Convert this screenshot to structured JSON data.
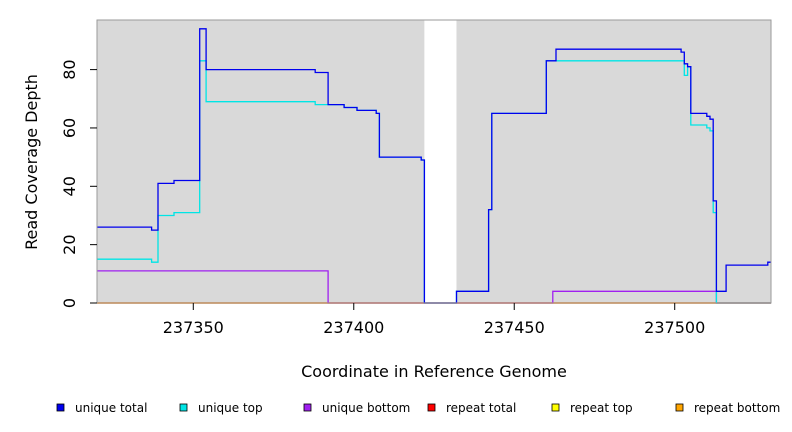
{
  "chart_data": {
    "type": "line",
    "xlabel": "Coordinate in Reference Genome",
    "ylabel": "Read Coverage Depth",
    "xlim": [
      237320,
      237530
    ],
    "ylim": [
      0,
      97
    ],
    "x_ticks": [
      237350,
      237400,
      237450,
      237500
    ],
    "x_tick_labels": [
      "237350",
      "237400",
      "237450",
      "237500"
    ],
    "y_ticks": [
      0,
      20,
      40,
      60,
      80
    ],
    "y_tick_labels": [
      "0",
      "20",
      "40",
      "60",
      "80"
    ],
    "grid": false,
    "background": "#d9d9d9",
    "gap_region": [
      237422,
      237432
    ],
    "legend_position": "bottom",
    "series": [
      {
        "name": "unique total",
        "color": "#0000ee",
        "x": [
          237320,
          237337,
          237339,
          237344,
          237352,
          237354,
          237388,
          237392,
          237397,
          237401,
          237407,
          237408,
          237409,
          237421,
          237422,
          237432,
          237442,
          237443,
          237460,
          237463,
          237502,
          237503,
          237504,
          237505,
          237510,
          237511,
          237512,
          237513,
          237516,
          237529,
          237530
        ],
        "y": [
          26,
          25,
          41,
          42,
          94,
          80,
          79,
          68,
          67,
          66,
          65,
          50,
          50,
          49,
          0,
          4,
          32,
          65,
          83,
          87,
          86,
          82,
          81,
          65,
          64,
          63,
          35,
          4,
          13,
          14,
          14
        ]
      },
      {
        "name": "unique top",
        "color": "#00e5e5",
        "x": [
          237320,
          237334,
          237337,
          237339,
          237344,
          237352,
          237354,
          237388,
          237392,
          237397,
          237401,
          237407,
          237408,
          237409,
          237421,
          237422,
          237432,
          237442,
          237443,
          237460,
          237463,
          237502,
          237503,
          237504,
          237505,
          237510,
          237511,
          237512,
          237513,
          237530
        ],
        "y": [
          15,
          15,
          14,
          30,
          31,
          83,
          69,
          68,
          68,
          67,
          66,
          65,
          50,
          50,
          49,
          0,
          4,
          32,
          65,
          83,
          83,
          83,
          78,
          81,
          61,
          60,
          59,
          31,
          0,
          0
        ]
      },
      {
        "name": "unique bottom",
        "color": "#a020f0",
        "x": [
          237320,
          237391,
          237392,
          237461,
          237462,
          237512,
          237513,
          237530
        ],
        "y": [
          11,
          11,
          0,
          0,
          4,
          4,
          0,
          0
        ]
      },
      {
        "name": "repeat total",
        "color": "#ff0000",
        "x": [
          237320,
          237530
        ],
        "y": [
          0,
          0
        ]
      },
      {
        "name": "repeat top",
        "color": "#ffff00",
        "x": [
          237320,
          237530
        ],
        "y": [
          0,
          0
        ]
      },
      {
        "name": "repeat bottom",
        "color": "#ffa500",
        "x": [
          237320,
          237530
        ],
        "y": [
          0,
          0
        ]
      }
    ]
  }
}
